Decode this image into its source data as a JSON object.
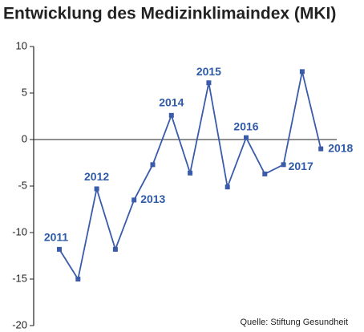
{
  "chart_data": {
    "type": "line",
    "title": "Entwicklung des Medizinklimaindex (MKI)",
    "categories": [
      "2011",
      null,
      "2012",
      null,
      "2013",
      null,
      "2014",
      null,
      "2015",
      null,
      "2016",
      null,
      "2017",
      null,
      "2018"
    ],
    "series": [
      {
        "name": "MKI",
        "color": "#3a5ba9",
        "values": [
          -11.8,
          -15.0,
          -5.3,
          -11.8,
          -6.5,
          -2.7,
          2.6,
          -3.6,
          6.1,
          -5.1,
          0.2,
          -3.7,
          -2.7,
          7.3,
          -1.0
        ]
      }
    ],
    "ylim": [
      -20,
      10
    ],
    "yticks": [
      -20,
      -15,
      -10,
      -5,
      0,
      5,
      10
    ],
    "source": "Quelle: Stiftung Gesundheit"
  }
}
